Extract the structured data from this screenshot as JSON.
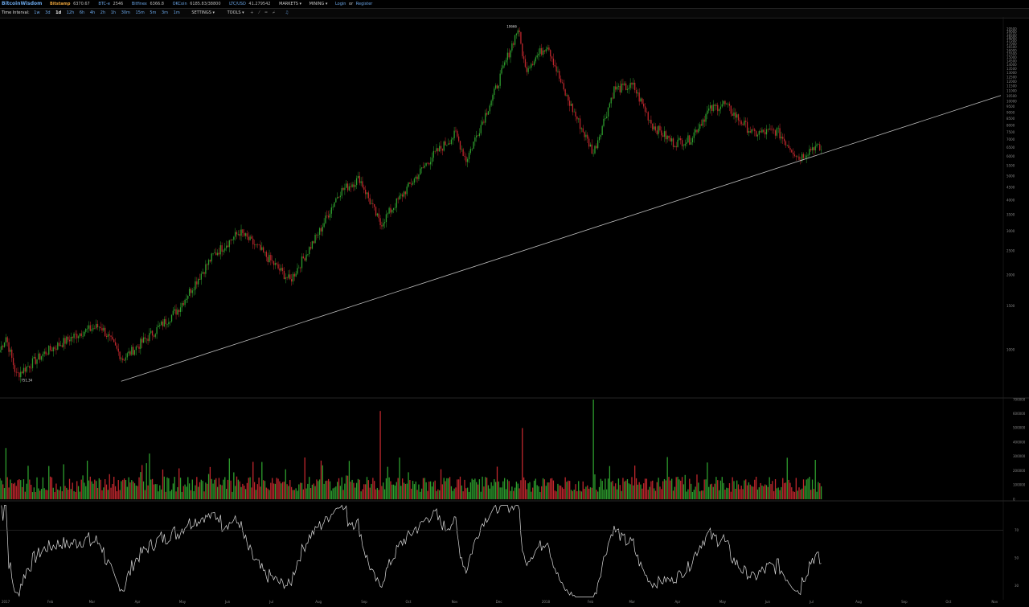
{
  "topbar": {
    "brand": "BitcoinWisdom",
    "tickers": [
      {
        "name": "Bitstamp",
        "value": "6370.67"
      },
      {
        "name": "BTC-e",
        "value": "2546"
      },
      {
        "name": "Bitfinex",
        "value": "6366.8"
      },
      {
        "name": "OKCoin",
        "value": "6185.83/38800"
      },
      {
        "name": "LTC/USD",
        "value": "41.279542"
      }
    ],
    "menus": [
      "MARKETS ▾",
      "MINING ▾"
    ],
    "login": "Login",
    "or": "or",
    "register": "Register"
  },
  "toolbar": {
    "label": "Time Interval:",
    "intervals": [
      "1w",
      "3d",
      "1d",
      "12h",
      "6h",
      "4h",
      "2h",
      "1h",
      "30m",
      "15m",
      "5m",
      "3m",
      "1m"
    ],
    "selected": "1d",
    "settings": "SETTINGS ▾",
    "tools": "TOOLS ▾",
    "tool_icons": [
      "crosshair-icon",
      "trendline-icon",
      "horizontal-line-icon",
      "fib-icon"
    ],
    "alert_icon": "bell-icon"
  },
  "chart_data": [
    {
      "type": "candlestick",
      "title": "",
      "scale": "log",
      "ylim": [
        650,
        20000
      ],
      "price_ticks": [
        "19500",
        "19000",
        "18500",
        "18000",
        "17500",
        "17000",
        "16500",
        "16000",
        "15500",
        "15000",
        "14500",
        "14000",
        "13500",
        "13000",
        "12500",
        "12000",
        "11500",
        "11000",
        "10500",
        "10000",
        "9500",
        "9000",
        "8500",
        "8000",
        "7500",
        "7000",
        "6500",
        "6000",
        "5500",
        "5000",
        "4500",
        "4000",
        "3500",
        "3000",
        "2500",
        "2000",
        "1500",
        "1000"
      ],
      "annotations": {
        "high": "19666",
        "low": "751.34"
      },
      "trendline": {
        "from": {
          "x": "2017-03-25",
          "y": 751
        },
        "to": {
          "x": "2018-07-10",
          "y": 6150
        }
      },
      "close_path": [
        {
          "x": "2017-01-01",
          "y": 1000
        },
        {
          "x": "2017-01-05",
          "y": 1130
        },
        {
          "x": "2017-01-12",
          "y": 790
        },
        {
          "x": "2017-02-01",
          "y": 980
        },
        {
          "x": "2017-02-25",
          "y": 1180
        },
        {
          "x": "2017-03-10",
          "y": 1250
        },
        {
          "x": "2017-03-25",
          "y": 920
        },
        {
          "x": "2017-04-15",
          "y": 1180
        },
        {
          "x": "2017-05-01",
          "y": 1450
        },
        {
          "x": "2017-05-25",
          "y": 2400
        },
        {
          "x": "2017-06-12",
          "y": 2980
        },
        {
          "x": "2017-06-25",
          "y": 2550
        },
        {
          "x": "2017-07-16",
          "y": 1900
        },
        {
          "x": "2017-08-05",
          "y": 3000
        },
        {
          "x": "2017-08-18",
          "y": 4300
        },
        {
          "x": "2017-09-01",
          "y": 4900
        },
        {
          "x": "2017-09-15",
          "y": 3200
        },
        {
          "x": "2017-10-01",
          "y": 4300
        },
        {
          "x": "2017-10-20",
          "y": 6000
        },
        {
          "x": "2017-11-05",
          "y": 7400
        },
        {
          "x": "2017-11-12",
          "y": 5800
        },
        {
          "x": "2017-12-01",
          "y": 10800
        },
        {
          "x": "2017-12-17",
          "y": 19666
        },
        {
          "x": "2017-12-22",
          "y": 13500
        },
        {
          "x": "2018-01-06",
          "y": 17000
        },
        {
          "x": "2018-01-17",
          "y": 11000
        },
        {
          "x": "2018-02-06",
          "y": 6200
        },
        {
          "x": "2018-02-20",
          "y": 11200
        },
        {
          "x": "2018-03-05",
          "y": 11500
        },
        {
          "x": "2018-03-18",
          "y": 8000
        },
        {
          "x": "2018-04-01",
          "y": 6800
        },
        {
          "x": "2018-04-12",
          "y": 7000
        },
        {
          "x": "2018-04-25",
          "y": 9200
        },
        {
          "x": "2018-05-05",
          "y": 9800
        },
        {
          "x": "2018-05-25",
          "y": 7400
        },
        {
          "x": "2018-06-10",
          "y": 7600
        },
        {
          "x": "2018-06-25",
          "y": 5900
        },
        {
          "x": "2018-07-05",
          "y": 6600
        },
        {
          "x": "2018-07-10",
          "y": 6370
        }
      ]
    },
    {
      "type": "bar",
      "title": "",
      "ylim": [
        0,
        700000
      ],
      "volume_ticks": [
        "700000",
        "600000",
        "500000",
        "400000",
        "300000",
        "200000",
        "100000",
        "0"
      ],
      "peaks": [
        {
          "x": "2017-01-05",
          "y": 360000
        },
        {
          "x": "2017-09-15",
          "y": 620000
        },
        {
          "x": "2017-12-20",
          "y": 500000
        },
        {
          "x": "2018-02-06",
          "y": 700000
        }
      ]
    },
    {
      "type": "line",
      "title": "",
      "ylim": [
        20,
        90
      ],
      "rsi_ticks": [
        "70",
        "50",
        "30"
      ],
      "reference_level": 70
    }
  ],
  "x_labels": [
    "2017",
    "Feb",
    "Mar",
    "Apr",
    "May",
    "Jun",
    "Jul",
    "Aug",
    "Sep",
    "Oct",
    "Nov",
    "Dec",
    "2018",
    "Feb",
    "Mar",
    "Apr",
    "May",
    "Jun",
    "Jul",
    "Aug",
    "Sep",
    "Oct",
    "Nov"
  ],
  "colors": {
    "up": "#2e9e2e",
    "down": "#c0272d",
    "trendline": "#bbbbbb",
    "accent": "#6aa6e8"
  }
}
